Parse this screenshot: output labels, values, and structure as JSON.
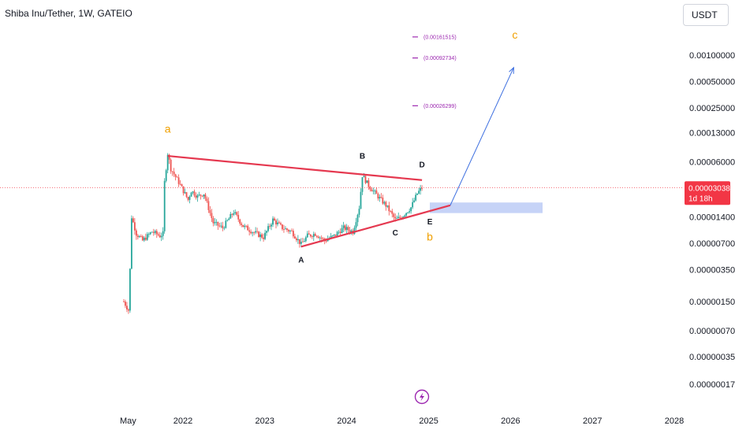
{
  "header": {
    "title": "Shiba Inu/Tether, 1W, GATEIO",
    "currency": "USDT"
  },
  "colors": {
    "up": "#26a69a",
    "down": "#ef5350",
    "trendline": "#e53950",
    "projection": "#3d6fe0",
    "wave_label": "#f0a000",
    "support_zone": "#b8c8f5",
    "price_tag": "#f23645",
    "marker": "#9c27b0"
  },
  "current_price": {
    "value": "0.00003038",
    "countdown": "1d 18h"
  },
  "flash_icon": "lightning-icon",
  "chart_data": {
    "type": "candlestick",
    "log_scale": true,
    "grid": false,
    "y_ticks": [
      {
        "value": 0.001,
        "label": "0.00100000"
      },
      {
        "value": 0.0005,
        "label": "0.00050000"
      },
      {
        "value": 0.00025,
        "label": "0.00025000"
      },
      {
        "value": 0.00013,
        "label": "0.00013000"
      },
      {
        "value": 6e-05,
        "label": "0.00006000"
      },
      {
        "value": 1.4e-05,
        "label": "0.00001400"
      },
      {
        "value": 7e-06,
        "label": "0.00000700"
      },
      {
        "value": 3.5e-06,
        "label": "0.00000350"
      },
      {
        "value": 1.5e-06,
        "label": "0.00000150"
      },
      {
        "value": 7e-07,
        "label": "0.00000070"
      },
      {
        "value": 3.5e-07,
        "label": "0.00000035"
      },
      {
        "value": 1.7e-07,
        "label": "0.00000017"
      }
    ],
    "x_ticks": [
      {
        "date": "2021-05-01",
        "label": "May"
      },
      {
        "date": "2022-01-01",
        "label": "2022"
      },
      {
        "date": "2023-01-01",
        "label": "2023"
      },
      {
        "date": "2024-01-01",
        "label": "2024"
      },
      {
        "date": "2025-01-01",
        "label": "2025"
      },
      {
        "date": "2026-01-01",
        "label": "2026"
      },
      {
        "date": "2027-01-01",
        "label": "2027"
      },
      {
        "date": "2028-01-01",
        "label": "2028"
      }
    ],
    "price_path": [
      [
        "2021-04-12",
        1.5e-06
      ],
      [
        "2021-05-03",
        1.2e-06
      ],
      [
        "2021-05-10",
        3.5e-06
      ],
      [
        "2021-05-17",
        1.4e-05
      ],
      [
        "2021-06-07",
        9e-06
      ],
      [
        "2021-07-05",
        7.5e-06
      ],
      [
        "2021-08-16",
        9.5e-06
      ],
      [
        "2021-09-20",
        8.5e-06
      ],
      [
        "2021-10-04",
        9e-06
      ],
      [
        "2021-10-11",
        3.5e-05
      ],
      [
        "2021-10-25",
        7.5e-05
      ],
      [
        "2021-11-08",
        5e-05
      ],
      [
        "2021-12-13",
        3.5e-05
      ],
      [
        "2022-01-24",
        2.2e-05
      ],
      [
        "2022-02-07",
        2.8e-05
      ],
      [
        "2022-03-07",
        2.4e-05
      ],
      [
        "2022-04-04",
        2.6e-05
      ],
      [
        "2022-05-16",
        1.2e-05
      ],
      [
        "2022-06-27",
        1.05e-05
      ],
      [
        "2022-08-15",
        1.6e-05
      ],
      [
        "2022-09-26",
        1.1e-05
      ],
      [
        "2022-11-07",
        9.5e-06
      ],
      [
        "2022-12-26",
        8.2e-06
      ],
      [
        "2023-02-06",
        1.3e-05
      ],
      [
        "2023-03-20",
        1.05e-05
      ],
      [
        "2023-05-01",
        9.5e-06
      ],
      [
        "2023-06-12",
        6.8e-06
      ],
      [
        "2023-07-10",
        8.5e-06
      ],
      [
        "2023-08-14",
        9e-06
      ],
      [
        "2023-09-25",
        7.5e-06
      ],
      [
        "2023-11-06",
        8.5e-06
      ],
      [
        "2023-12-18",
        1.05e-05
      ],
      [
        "2024-01-29",
        9.5e-06
      ],
      [
        "2024-02-26",
        1.8e-05
      ],
      [
        "2024-03-11",
        4.2e-05
      ],
      [
        "2024-04-08",
        3.2e-05
      ],
      [
        "2024-05-20",
        2.4e-05
      ],
      [
        "2024-06-24",
        1.9e-05
      ],
      [
        "2024-08-05",
        1.3e-05
      ],
      [
        "2024-09-02",
        1.4e-05
      ],
      [
        "2024-10-14",
        1.8e-05
      ],
      [
        "2024-11-11",
        2.6e-05
      ],
      [
        "2024-12-02",
        3.038e-05
      ]
    ],
    "key_points": [
      {
        "label": "a",
        "date": "2021-10-25",
        "price": 0.00013,
        "style": "wave"
      },
      {
        "label": "A",
        "date": "2023-06-12",
        "price": 4.2e-06,
        "style": "point"
      },
      {
        "label": "B",
        "date": "2024-03-11",
        "price": 6.5e-05,
        "style": "point"
      },
      {
        "label": "C",
        "date": "2024-08-05",
        "price": 8.6e-06,
        "style": "point"
      },
      {
        "label": "D",
        "date": "2024-12-02",
        "price": 5.2e-05,
        "style": "point"
      },
      {
        "label": "E",
        "date": "2025-01-06",
        "price": 1.15e-05,
        "style": "point"
      },
      {
        "label": "b",
        "date": "2025-01-06",
        "price": 7.5e-06,
        "style": "wave"
      },
      {
        "label": "c",
        "date": "2026-01-20",
        "price": 0.00155,
        "style": "wave"
      }
    ],
    "target_levels": [
      {
        "label": "(0.00161515)",
        "price": 0.00161515
      },
      {
        "label": "(0.00092734)",
        "price": 0.00092734
      },
      {
        "label": "(0.00026299)",
        "price": 0.00026299
      }
    ],
    "trendlines": [
      {
        "name": "upper",
        "from": [
          "2021-10-25",
          7e-05
        ],
        "to": [
          "2024-12-02",
          3.7e-05
        ]
      },
      {
        "name": "lower",
        "from": [
          "2023-06-12",
          6.4e-06
        ],
        "to": [
          "2025-04-07",
          1.9e-05
        ]
      }
    ],
    "projection": {
      "from": [
        "2025-04-07",
        1.9e-05
      ],
      "to": [
        "2026-01-15",
        0.00072
      ]
    },
    "support_zone": {
      "from_date": "2024-12-02",
      "to_date": "2026-06-01",
      "low": 1.55e-05,
      "high": 2.05e-05
    }
  }
}
